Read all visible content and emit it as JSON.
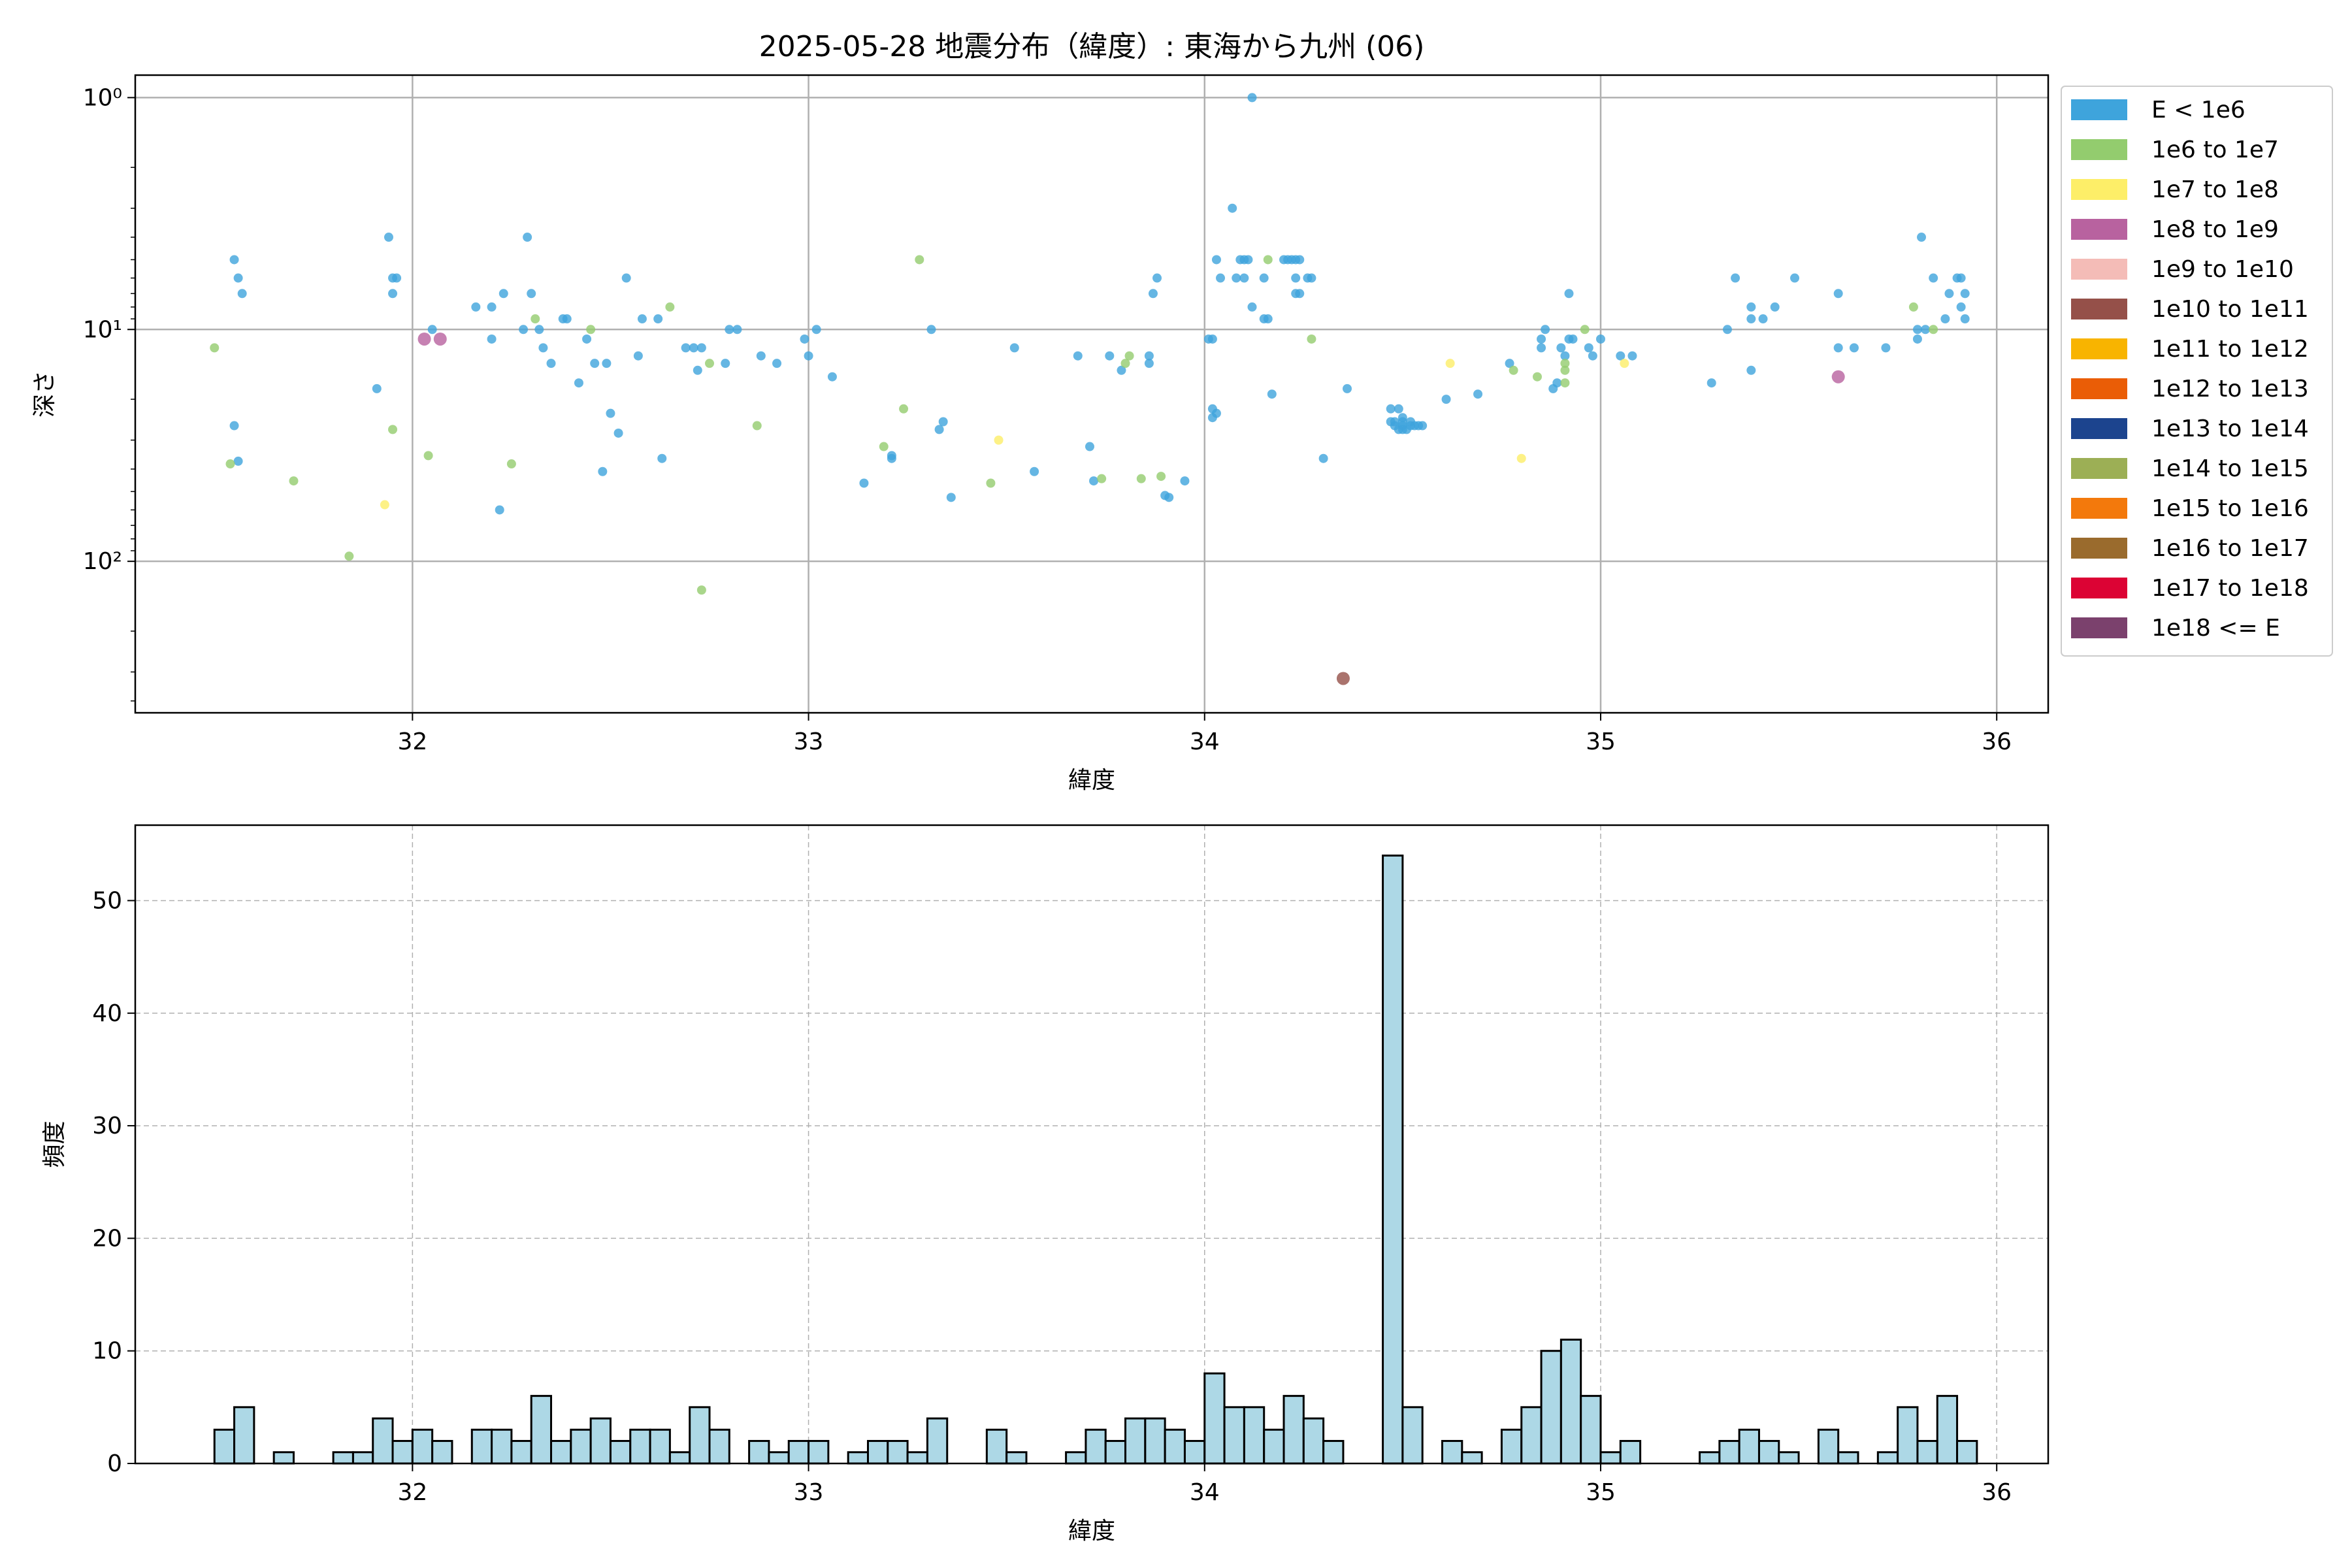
{
  "chart_data": [
    {
      "type": "scatter",
      "title": "2025-05-28 地震分布（緯度）: 東海から九州 (06)",
      "xlabel": "緯度",
      "ylabel": "深さ",
      "xlim": [
        31.3,
        36.13
      ],
      "ylim": [
        450,
        0.8
      ],
      "y_scale": "log",
      "y_inverted": true,
      "grid": true,
      "legend_position": "outside right, top",
      "xticks": [
        32,
        33,
        34,
        35,
        36
      ],
      "yticks": [
        {
          "value": 1,
          "label": "10⁰"
        },
        {
          "value": 10,
          "label": "10¹"
        },
        {
          "value": 100,
          "label": "10²"
        }
      ],
      "legend": [
        {
          "label": "E < 1e6",
          "color": "#3ea4dc"
        },
        {
          "label": "1e6 to 1e7",
          "color": "#93cc6e"
        },
        {
          "label": "1e7 to 1e8",
          "color": "#fdee68"
        },
        {
          "label": "1e8 to 1e9",
          "color": "#b8629f"
        },
        {
          "label": "1e9 to 1e10",
          "color": "#f4bcb7"
        },
        {
          "label": "1e10 to 1e11",
          "color": "#955049"
        },
        {
          "label": "1e11 to 1e12",
          "color": "#f8b400"
        },
        {
          "label": "1e12 to 1e13",
          "color": "#ea5d06"
        },
        {
          "label": "1e13 to 1e14",
          "color": "#1c448e"
        },
        {
          "label": "1e14 to 1e15",
          "color": "#9caf55"
        },
        {
          "label": "1e15 to 1e16",
          "color": "#f3790c"
        },
        {
          "label": "1e16 to 1e17",
          "color": "#9a6b2d"
        },
        {
          "label": "1e17 to 1e18",
          "color": "#dc0334"
        },
        {
          "label": "1e18 <= E",
          "color": "#7b416d"
        }
      ],
      "points": [
        [
          31.55,
          5,
          0
        ],
        [
          31.56,
          6,
          0
        ],
        [
          31.57,
          7,
          0
        ],
        [
          31.55,
          26,
          0
        ],
        [
          31.56,
          37,
          0
        ],
        [
          31.54,
          38,
          1
        ],
        [
          31.5,
          12,
          1
        ],
        [
          31.7,
          45,
          1
        ],
        [
          31.84,
          95,
          1
        ],
        [
          31.91,
          18,
          0
        ],
        [
          31.94,
          4,
          0
        ],
        [
          31.95,
          6,
          0
        ],
        [
          31.96,
          6,
          0
        ],
        [
          31.95,
          7,
          0
        ],
        [
          31.93,
          57,
          2
        ],
        [
          31.95,
          27,
          1
        ],
        [
          32.03,
          11,
          3
        ],
        [
          32.05,
          10,
          0
        ],
        [
          32.07,
          11,
          3
        ],
        [
          32.04,
          35,
          1
        ],
        [
          32.16,
          8,
          0
        ],
        [
          32.2,
          8,
          0
        ],
        [
          32.2,
          11,
          0
        ],
        [
          32.23,
          7,
          0
        ],
        [
          32.22,
          60,
          0
        ],
        [
          32.25,
          38,
          1
        ],
        [
          32.29,
          4,
          0
        ],
        [
          32.28,
          10,
          0
        ],
        [
          32.3,
          7,
          0
        ],
        [
          32.31,
          9,
          1
        ],
        [
          32.32,
          10,
          0
        ],
        [
          32.33,
          12,
          0
        ],
        [
          32.35,
          14,
          0
        ],
        [
          32.38,
          9,
          0
        ],
        [
          32.39,
          9,
          0
        ],
        [
          32.42,
          17,
          0
        ],
        [
          32.44,
          11,
          0
        ],
        [
          32.45,
          10,
          1
        ],
        [
          32.46,
          14,
          0
        ],
        [
          32.49,
          14,
          0
        ],
        [
          32.5,
          23,
          0
        ],
        [
          32.52,
          28,
          0
        ],
        [
          32.48,
          41,
          0
        ],
        [
          32.54,
          6,
          0
        ],
        [
          32.57,
          13,
          0
        ],
        [
          32.58,
          9,
          0
        ],
        [
          32.62,
          9,
          0
        ],
        [
          32.65,
          8,
          1
        ],
        [
          32.63,
          36,
          0
        ],
        [
          32.69,
          12,
          0
        ],
        [
          32.71,
          12,
          0
        ],
        [
          32.72,
          15,
          0
        ],
        [
          32.73,
          12,
          0
        ],
        [
          32.75,
          14,
          1
        ],
        [
          32.8,
          10,
          0
        ],
        [
          32.79,
          14,
          0
        ],
        [
          32.82,
          10,
          0
        ],
        [
          32.88,
          13,
          0
        ],
        [
          32.92,
          14,
          0
        ],
        [
          32.73,
          133,
          1
        ],
        [
          32.87,
          26,
          1
        ],
        [
          32.99,
          11,
          0
        ],
        [
          33.0,
          13,
          0
        ],
        [
          33.02,
          10,
          0
        ],
        [
          33.06,
          16,
          0
        ],
        [
          33.14,
          46,
          0
        ],
        [
          33.19,
          32,
          1
        ],
        [
          33.21,
          36,
          0
        ],
        [
          33.24,
          22,
          1
        ],
        [
          33.21,
          35,
          0
        ],
        [
          33.28,
          5,
          1
        ],
        [
          33.31,
          10,
          0
        ],
        [
          33.34,
          25,
          0
        ],
        [
          33.33,
          27,
          0
        ],
        [
          33.36,
          53,
          0
        ],
        [
          33.46,
          46,
          1
        ],
        [
          33.48,
          30,
          2
        ],
        [
          33.52,
          12,
          0
        ],
        [
          33.57,
          41,
          0
        ],
        [
          33.68,
          13,
          0
        ],
        [
          33.71,
          32,
          0
        ],
        [
          33.72,
          45,
          0
        ],
        [
          33.74,
          44,
          1
        ],
        [
          33.76,
          13,
          0
        ],
        [
          33.79,
          15,
          0
        ],
        [
          33.8,
          14,
          1
        ],
        [
          33.81,
          13,
          1
        ],
        [
          33.84,
          44,
          1
        ],
        [
          33.86,
          14,
          0
        ],
        [
          33.86,
          13,
          0
        ],
        [
          33.88,
          6,
          0
        ],
        [
          33.87,
          7,
          0
        ],
        [
          33.89,
          43,
          1
        ],
        [
          33.91,
          53,
          0
        ],
        [
          33.9,
          52,
          0
        ],
        [
          33.95,
          45,
          0
        ],
        [
          34.01,
          11,
          0
        ],
        [
          34.02,
          11,
          0
        ],
        [
          34.03,
          5,
          0
        ],
        [
          34.04,
          6,
          0
        ],
        [
          34.02,
          22,
          0
        ],
        [
          34.03,
          23,
          0
        ],
        [
          34.02,
          24,
          0
        ],
        [
          34.07,
          3,
          0
        ],
        [
          34.09,
          5,
          0
        ],
        [
          34.1,
          5,
          0
        ],
        [
          34.08,
          6,
          0
        ],
        [
          34.1,
          6,
          0
        ],
        [
          34.11,
          5,
          0
        ],
        [
          34.12,
          1,
          0
        ],
        [
          34.12,
          8,
          0
        ],
        [
          34.15,
          6,
          0
        ],
        [
          34.16,
          5,
          1
        ],
        [
          34.15,
          9,
          0
        ],
        [
          34.16,
          9,
          0
        ],
        [
          34.17,
          19,
          0
        ],
        [
          34.2,
          5,
          0
        ],
        [
          34.21,
          5,
          0
        ],
        [
          34.22,
          5,
          0
        ],
        [
          34.23,
          5,
          0
        ],
        [
          34.24,
          5,
          0
        ],
        [
          34.23,
          6,
          0
        ],
        [
          34.23,
          7,
          0
        ],
        [
          34.24,
          7,
          0
        ],
        [
          34.26,
          6,
          0
        ],
        [
          34.27,
          6,
          0
        ],
        [
          34.27,
          11,
          1
        ],
        [
          34.3,
          36,
          0
        ],
        [
          34.36,
          18,
          0
        ],
        [
          34.35,
          320,
          5
        ],
        [
          34.47,
          22,
          0
        ],
        [
          34.48,
          25,
          0
        ],
        [
          34.49,
          22,
          0
        ],
        [
          34.5,
          26,
          0
        ],
        [
          34.48,
          26,
          0
        ],
        [
          34.49,
          27,
          0
        ],
        [
          34.5,
          27,
          0
        ],
        [
          34.51,
          27,
          0
        ],
        [
          34.52,
          26,
          0
        ],
        [
          34.53,
          26,
          0
        ],
        [
          34.5,
          24,
          0
        ],
        [
          34.55,
          26,
          0
        ],
        [
          34.47,
          25,
          0
        ],
        [
          34.5,
          25,
          0
        ],
        [
          34.52,
          25,
          0
        ],
        [
          34.54,
          26,
          0
        ],
        [
          34.61,
          20,
          0
        ],
        [
          34.62,
          14,
          2
        ],
        [
          34.69,
          19,
          0
        ],
        [
          34.77,
          14,
          0
        ],
        [
          34.78,
          15,
          1
        ],
        [
          34.8,
          36,
          2
        ],
        [
          34.84,
          16,
          1
        ],
        [
          34.85,
          11,
          0
        ],
        [
          34.85,
          12,
          0
        ],
        [
          34.86,
          10,
          0
        ],
        [
          34.88,
          18,
          0
        ],
        [
          34.89,
          17,
          0
        ],
        [
          34.9,
          12,
          0
        ],
        [
          34.91,
          13,
          0
        ],
        [
          34.91,
          14,
          1
        ],
        [
          34.92,
          11,
          0
        ],
        [
          34.92,
          7,
          0
        ],
        [
          34.91,
          15,
          1
        ],
        [
          34.91,
          17,
          1
        ],
        [
          34.93,
          11,
          0
        ],
        [
          34.96,
          10,
          1
        ],
        [
          34.97,
          12,
          0
        ],
        [
          34.98,
          13,
          0
        ],
        [
          35.0,
          11,
          0
        ],
        [
          35.05,
          13,
          0
        ],
        [
          35.06,
          14,
          2
        ],
        [
          35.08,
          13,
          0
        ],
        [
          35.28,
          17,
          0
        ],
        [
          35.32,
          10,
          0
        ],
        [
          35.34,
          6,
          0
        ],
        [
          35.38,
          8,
          0
        ],
        [
          35.38,
          9,
          0
        ],
        [
          35.41,
          9,
          0
        ],
        [
          35.44,
          8,
          0
        ],
        [
          35.38,
          15,
          0
        ],
        [
          35.49,
          6,
          0
        ],
        [
          35.6,
          7,
          0
        ],
        [
          35.6,
          12,
          0
        ],
        [
          35.64,
          12,
          0
        ],
        [
          35.72,
          12,
          0
        ],
        [
          35.6,
          16,
          3
        ],
        [
          35.79,
          8,
          1
        ],
        [
          35.8,
          10,
          0
        ],
        [
          35.81,
          4,
          0
        ],
        [
          35.8,
          11,
          0
        ],
        [
          35.82,
          10,
          0
        ],
        [
          35.84,
          10,
          1
        ],
        [
          35.84,
          6,
          0
        ],
        [
          35.87,
          9,
          0
        ],
        [
          35.88,
          7,
          0
        ],
        [
          35.9,
          6,
          0
        ],
        [
          35.91,
          6,
          0
        ],
        [
          35.91,
          8,
          0
        ],
        [
          35.92,
          7,
          0
        ],
        [
          35.92,
          9,
          0
        ]
      ]
    },
    {
      "type": "bar",
      "title": "",
      "xlabel": "緯度",
      "ylabel": "頻度",
      "xlim": [
        31.3,
        36.13
      ],
      "ylim": [
        0,
        56.7
      ],
      "grid": true,
      "xticks": [
        32,
        33,
        34,
        35,
        36
      ],
      "yticks": [
        0,
        10,
        20,
        30,
        40,
        50
      ],
      "bin_start": 31.5,
      "bin_width": 0.05,
      "counts": [
        3,
        5,
        0,
        1,
        0,
        0,
        1,
        1,
        4,
        2,
        3,
        2,
        0,
        3,
        3,
        2,
        6,
        2,
        3,
        4,
        2,
        3,
        3,
        1,
        5,
        3,
        0,
        2,
        1,
        2,
        2,
        0,
        1,
        2,
        2,
        1,
        4,
        0,
        0,
        3,
        1,
        0,
        0,
        1,
        3,
        2,
        4,
        4,
        3,
        2,
        8,
        5,
        5,
        3,
        6,
        4,
        2,
        0,
        0,
        54,
        5,
        0,
        2,
        1,
        0,
        3,
        5,
        10,
        11,
        6,
        1,
        2,
        0,
        0,
        0,
        1,
        2,
        3,
        2,
        1,
        0,
        3,
        1,
        0,
        1,
        5,
        2,
        6,
        2,
        0
      ]
    }
  ]
}
